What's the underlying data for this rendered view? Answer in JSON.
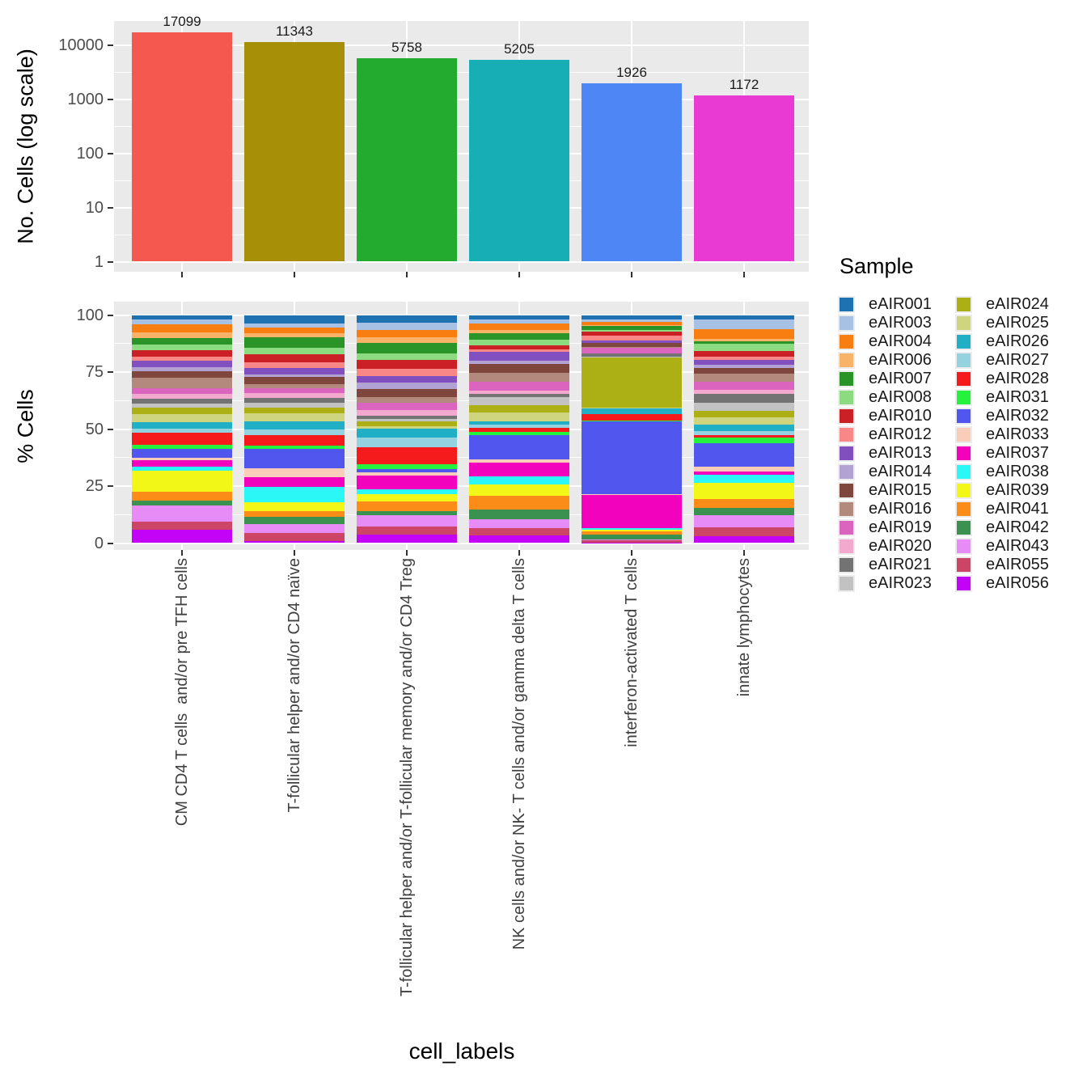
{
  "figure": {
    "background": "#FFFFFF",
    "panel_background": "#EAEAEA",
    "grid_color": "#FFFFFF",
    "tick_color": "#333333",
    "tick_label_color": "#4D4D4D"
  },
  "x_axis_title": "cell_labels",
  "legend": {
    "title": "Sample"
  },
  "chart_data": [
    {
      "type": "bar",
      "ylabel": "No. Cells (log scale)",
      "yscale": "log",
      "yticks": [
        1,
        10,
        100,
        1000,
        10000
      ],
      "ylim": [
        1,
        20000
      ],
      "grid": true,
      "categories": [
        "CM CD4 T cells  and/or pre TFH cells",
        "T-follicular helper and/or CD4 naïve",
        "T-follicular helper and/or T-follicular memory and/or CD4 Treg",
        "NK cells and/or NK- T cells and/or gamma delta T cells",
        "interferon-activated T cells",
        "innate lymphocytes"
      ],
      "values": [
        17099,
        11343,
        5758,
        5205,
        1926,
        1172
      ],
      "bar_labels": [
        "17099",
        "11343",
        "5758",
        "5205",
        "1926",
        "1172"
      ],
      "bar_colors": [
        "#F4584E",
        "#A78F07",
        "#23AB30",
        "#18AEB5",
        "#4E86F5",
        "#E93BD3"
      ]
    },
    {
      "type": "stacked-bar",
      "ylabel": "% Cells",
      "yticks": [
        0,
        25,
        50,
        75,
        100
      ],
      "ylim": [
        0,
        100
      ],
      "grid": true,
      "legend_position": "right",
      "stack_order": "first series at top of each bar",
      "categories": [
        "CM CD4 T cells  and/or pre TFH cells",
        "T-follicular helper and/or CD4 naïve",
        "T-follicular helper and/or T-follicular memory and/or CD4 Treg",
        "NK cells and/or NK- T cells and/or gamma delta T cells",
        "interferon-activated T cells",
        "innate lymphocytes"
      ],
      "series": [
        {
          "name": "eAIR001",
          "color": "#1F72B2",
          "values": [
            2.1,
            3.7,
            3.3,
            2.1,
            1.9,
            2.1
          ]
        },
        {
          "name": "eAIR003",
          "color": "#A6C1E4",
          "values": [
            2.1,
            1.9,
            3.4,
            1.5,
            1.2,
            4.1
          ]
        },
        {
          "name": "eAIR004",
          "color": "#F87E12",
          "values": [
            3.4,
            2.5,
            3.2,
            3.1,
            1.5,
            4.1
          ]
        },
        {
          "name": "eAIR006",
          "color": "#F9B368",
          "values": [
            2.5,
            1.5,
            2.4,
            1.3,
            0.1,
            1.2
          ]
        },
        {
          "name": "eAIR007",
          "color": "#2B9428",
          "values": [
            2.7,
            4.6,
            4.5,
            2.8,
            2.0,
            0.9
          ]
        },
        {
          "name": "eAIR008",
          "color": "#8CDB80",
          "values": [
            2.7,
            3.1,
            2.9,
            2.6,
            0.6,
            3.5
          ]
        },
        {
          "name": "eAIR010",
          "color": "#CB2026",
          "values": [
            2.6,
            3.4,
            3.9,
            1.8,
            1.7,
            2.2
          ]
        },
        {
          "name": "eAIR012",
          "color": "#F98788",
          "values": [
            2.0,
            2.5,
            3.1,
            1.1,
            2.4,
            1.7
          ]
        },
        {
          "name": "eAIR013",
          "color": "#8250BE",
          "values": [
            2.8,
            2.8,
            2.8,
            4.0,
            0.9,
            2.0
          ]
        },
        {
          "name": "eAIR014",
          "color": "#B2A2D3",
          "values": [
            1.9,
            1.2,
            3.1,
            1.3,
            0.1,
            1.4
          ]
        },
        {
          "name": "eAIR015",
          "color": "#7E463C",
          "values": [
            2.7,
            3.1,
            3.4,
            3.9,
            1.8,
            2.4
          ]
        },
        {
          "name": "eAIR016",
          "color": "#B3897E",
          "values": [
            4.6,
            2.0,
            2.6,
            4.0,
            0.2,
            3.5
          ]
        },
        {
          "name": "eAIR019",
          "color": "#DA64BE",
          "values": [
            2.5,
            1.9,
            3.1,
            3.9,
            2.6,
            3.5
          ]
        },
        {
          "name": "eAIR020",
          "color": "#F3A8CD",
          "values": [
            2.0,
            2.2,
            2.6,
            1.2,
            0.1,
            1.8
          ]
        },
        {
          "name": "eAIR021",
          "color": "#737373",
          "values": [
            2.2,
            2.1,
            1.3,
            1.7,
            1.5,
            3.9
          ]
        },
        {
          "name": "eAIR023",
          "color": "#C2C2C2",
          "values": [
            2.0,
            2.0,
            1.1,
            3.3,
            0.2,
            3.8
          ]
        },
        {
          "name": "eAIR024",
          "color": "#ACB014",
          "values": [
            2.5,
            2.7,
            2.0,
            3.2,
            22.2,
            2.6
          ]
        },
        {
          "name": "eAIR025",
          "color": "#CFD47E",
          "values": [
            3.9,
            3.5,
            1.2,
            4.0,
            0.2,
            3.3
          ]
        },
        {
          "name": "eAIR026",
          "color": "#20AFC4",
          "values": [
            2.7,
            3.7,
            3.7,
            1.6,
            2.6,
            2.7
          ]
        },
        {
          "name": "eAIR027",
          "color": "#93D2DE",
          "values": [
            1.9,
            2.4,
            4.5,
            1.2,
            0.1,
            1.8
          ]
        },
        {
          "name": "eAIR028",
          "color": "#F51A1C",
          "values": [
            5.2,
            4.4,
            7.3,
            1.9,
            2.9,
            1.2
          ]
        },
        {
          "name": "eAIR031",
          "color": "#24F23C",
          "values": [
            1.8,
            1.4,
            2.1,
            1.3,
            0.1,
            2.6
          ]
        },
        {
          "name": "eAIR032",
          "color": "#5157EE",
          "values": [
            3.9,
            8.5,
            1.5,
            10.8,
            32.4,
            10.0
          ]
        },
        {
          "name": "eAIR033",
          "color": "#FACDBA",
          "values": [
            1.1,
            4.2,
            1.5,
            1.5,
            0.1,
            2.4
          ]
        },
        {
          "name": "eAIR037",
          "color": "#F202BC",
          "values": [
            2.6,
            4.2,
            6.0,
            5.9,
            14.7,
            1.4
          ]
        },
        {
          "name": "eAIR038",
          "color": "#2BF7F7",
          "values": [
            2.0,
            6.8,
            2.0,
            3.5,
            0.8,
            3.3
          ]
        },
        {
          "name": "eAIR039",
          "color": "#F2F718",
          "values": [
            9.0,
            3.9,
            3.3,
            5.3,
            0.7,
            7.1
          ]
        },
        {
          "name": "eAIR041",
          "color": "#FA8C17",
          "values": [
            4.0,
            2.5,
            4.1,
            5.9,
            1.5,
            4.1
          ]
        },
        {
          "name": "eAIR042",
          "color": "#3B9150",
          "values": [
            2.2,
            3.1,
            1.8,
            4.1,
            2.1,
            2.9
          ]
        },
        {
          "name": "eAIR043",
          "color": "#E78CF7",
          "values": [
            7.1,
            3.9,
            5.2,
            4.1,
            0.5,
            5.3
          ]
        },
        {
          "name": "eAIR055",
          "color": "#CD4566",
          "values": [
            3.4,
            3.5,
            3.4,
            3.3,
            0.8,
            4.1
          ]
        },
        {
          "name": "eAIR056",
          "color": "#C203F7",
          "values": [
            5.9,
            0.8,
            3.7,
            3.2,
            0.2,
            2.9
          ]
        }
      ]
    }
  ]
}
